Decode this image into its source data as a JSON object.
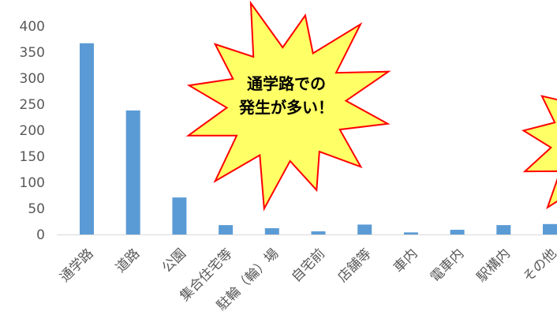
{
  "chart_data": {
    "type": "bar",
    "categories": [
      "通学路",
      "道路",
      "公園",
      "集合住宅等",
      "駐輪（輪）場",
      "自宅前",
      "店舗等",
      "車内",
      "電車内",
      "駅構内",
      "その他"
    ],
    "values": [
      367,
      238,
      71,
      18,
      12,
      6,
      19,
      4,
      9,
      18,
      20
    ],
    "ylim": [
      0,
      400
    ],
    "yticks": [
      0,
      50,
      100,
      150,
      200,
      250,
      300,
      350,
      400
    ],
    "grid": false,
    "legend": "none",
    "bar_color": "#5b9bd5",
    "annotations": [
      {
        "lines": [
          "通学路での",
          "発生が多い！"
        ],
        "fill": "#ffff66",
        "stroke": "#ff0000"
      },
      {
        "lines": [],
        "fill": "#ffff66",
        "stroke": "#ff0000"
      }
    ]
  }
}
